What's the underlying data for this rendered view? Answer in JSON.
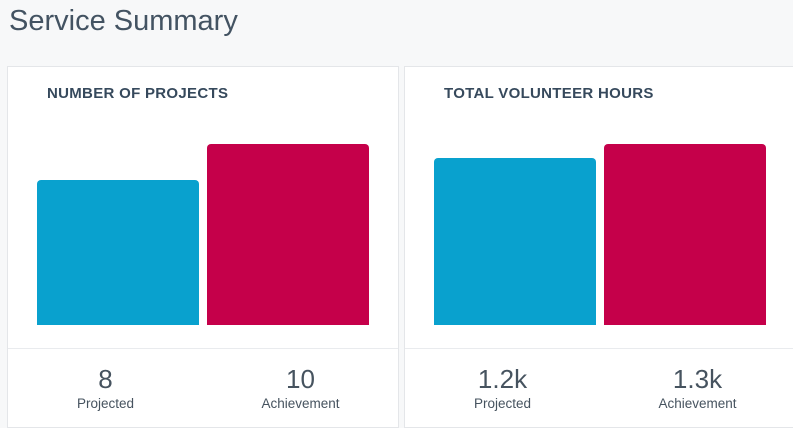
{
  "page": {
    "title": "Service Summary",
    "background_color": "#f7f8f9"
  },
  "colors": {
    "projected": "#09a1ce",
    "achievement": "#c5004a",
    "card_border": "#e4e6e9",
    "heading_text": "#36495c",
    "title_text": "#435362",
    "stat_text": "#46535f"
  },
  "cards": [
    {
      "header": "NUMBER OF PROJECTS",
      "stats": [
        {
          "value": "8",
          "label": "Projected"
        },
        {
          "value": "10",
          "label": "Achievement"
        }
      ]
    },
    {
      "header": "TOTAL VOLUNTEER HOURS",
      "stats": [
        {
          "value": "1.2k",
          "label": "Projected"
        },
        {
          "value": "1.3k",
          "label": "Achievement"
        }
      ]
    }
  ],
  "chart_data": [
    {
      "type": "bar",
      "title": "NUMBER OF PROJECTS",
      "categories": [
        "Projected",
        "Achievement"
      ],
      "values": [
        8,
        10
      ],
      "value_labels": [
        "8",
        "10"
      ],
      "colors": [
        "#09a1ce",
        "#c5004a"
      ],
      "xlabel": "",
      "ylabel": "",
      "ylim": [
        0,
        10
      ],
      "grid": false,
      "axes_hidden": true,
      "legend_position": "none"
    },
    {
      "type": "bar",
      "title": "TOTAL VOLUNTEER HOURS",
      "categories": [
        "Projected",
        "Achievement"
      ],
      "values": [
        1200,
        1300
      ],
      "value_labels": [
        "1.2k",
        "1.3k"
      ],
      "colors": [
        "#09a1ce",
        "#c5004a"
      ],
      "xlabel": "",
      "ylabel": "",
      "ylim": [
        0,
        1300
      ],
      "grid": false,
      "axes_hidden": true,
      "legend_position": "none"
    }
  ]
}
